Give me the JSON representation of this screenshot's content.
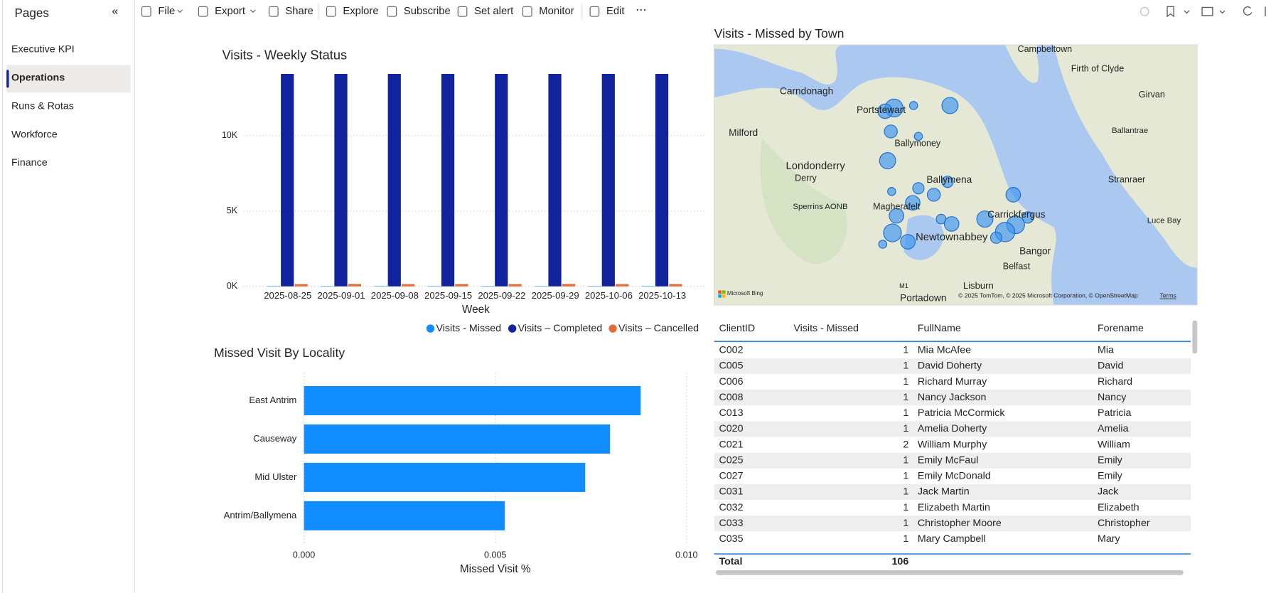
{
  "sidebar": {
    "title": "Pages",
    "items": [
      "Executive KPI",
      "Operations",
      "Runs & Rotas",
      "Workforce",
      "Finance"
    ]
  },
  "toolbar": {
    "items": [
      "File",
      "Export",
      "Share",
      "Explore",
      "Subscribe",
      "Set alert",
      "Monitor",
      "Edit"
    ]
  },
  "chart_data": [
    {
      "type": "bar",
      "title": "Visits - Weekly Status",
      "x_label": "Week",
      "categories": [
        "2025-08-25",
        "2025-09-01",
        "2025-09-08",
        "2025-09-15",
        "2025-09-22",
        "2025-09-29",
        "2025-10-06",
        "2025-10-13"
      ],
      "series": [
        {
          "name": "Visits - Missed",
          "color": "#118dff",
          "values": [
            14,
            12,
            15,
            13,
            11,
            14,
            13,
            14
          ]
        },
        {
          "name": "Visits – Completed",
          "color": "#12239e",
          "values": [
            14100,
            14100,
            14100,
            14100,
            14100,
            14100,
            14100,
            14100
          ]
        },
        {
          "name": "Visits – Cancelled",
          "color": "#e66c37",
          "values": [
            150,
            160,
            150,
            155,
            150,
            160,
            150,
            155
          ]
        }
      ],
      "ylim": [
        0,
        14100
      ],
      "yticks": [
        {
          "value": 0,
          "label": "0K"
        },
        {
          "value": 5000,
          "label": "5K"
        },
        {
          "value": 10000,
          "label": "10K"
        }
      ],
      "grid": true,
      "legend": "bottom-right"
    },
    {
      "type": "hbar",
      "title": "Missed Visit By Locality",
      "x_label": "Missed Visit %",
      "categories": [
        "East Antrim",
        "Causeway",
        "Mid Ulster",
        "Antrim/Ballymena"
      ],
      "values": [
        0.0088,
        0.008,
        0.00735,
        0.00525
      ],
      "color": "#118dff",
      "xlim": [
        0,
        0.01
      ],
      "xticks": [
        {
          "value": 0,
          "label": "0.000"
        },
        {
          "value": 0.005,
          "label": "0.005"
        },
        {
          "value": 0.01,
          "label": "0.010"
        }
      ],
      "grid": true
    }
  ],
  "map": {
    "title": "Visits - Missed by Town",
    "labels": [
      "Campbeltown",
      "Firth of Clyde",
      "Carndonagh",
      "Girvan",
      "Portstewart",
      "Ballantrae",
      "Milford",
      "Ballymoney",
      "Londonderry",
      "Derry",
      "Ballymena",
      "Stranraer",
      "Sperrins AONB",
      "Magherafelt",
      "Carrickfergus",
      "Luce Bay",
      "Newtownabbey",
      "Bangor",
      "Belfast",
      "Lisburn",
      "Portadown",
      "M1"
    ],
    "bing": "Microsoft Bing",
    "attribution": "© 2025 TomTom, © 2025 Microsoft Corporation, © OpenStreetMap",
    "terms": "Terms"
  },
  "table": {
    "columns": [
      "ClientID",
      "Visits - Missed",
      "FullName",
      "Forename"
    ],
    "rows": [
      [
        "C002",
        "1",
        "Mia McAfee",
        "Mia"
      ],
      [
        "C005",
        "1",
        "David Doherty",
        "David"
      ],
      [
        "C006",
        "1",
        "Richard Murray",
        "Richard"
      ],
      [
        "C008",
        "1",
        "Nancy Jackson",
        "Nancy"
      ],
      [
        "C013",
        "1",
        "Patricia McCormick",
        "Patricia"
      ],
      [
        "C020",
        "1",
        "Amelia Doherty",
        "Amelia"
      ],
      [
        "C021",
        "2",
        "William Murphy",
        "William"
      ],
      [
        "C025",
        "1",
        "Emily McFaul",
        "Emily"
      ],
      [
        "C027",
        "1",
        "Emily McDonald",
        "Emily"
      ],
      [
        "C031",
        "1",
        "Jack Martin",
        "Jack"
      ],
      [
        "C032",
        "1",
        "Elizabeth Martin",
        "Elizabeth"
      ],
      [
        "C033",
        "1",
        "Christopher Moore",
        "Christopher"
      ],
      [
        "C035",
        "1",
        "Mary Campbell",
        "Mary"
      ]
    ],
    "total": {
      "label": "Total",
      "value": "106"
    }
  }
}
